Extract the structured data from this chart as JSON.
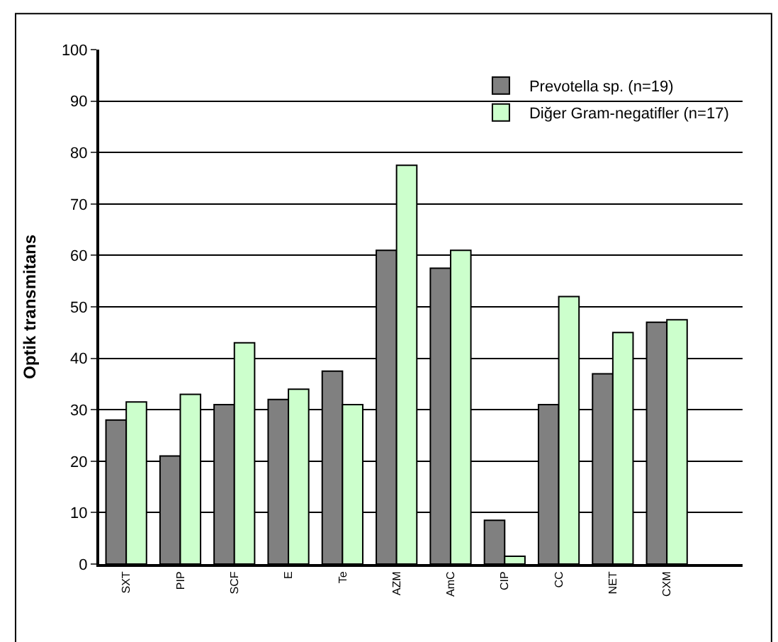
{
  "chart_data": {
    "type": "bar",
    "ylabel": "Optik transmitans",
    "categories": [
      "SXT",
      "PIP",
      "SCF",
      "E",
      "Te",
      "AZM",
      "AmC",
      "CIP",
      "CC",
      "NET",
      "CXM"
    ],
    "series": [
      {
        "name": "Prevotella sp. (n=19)",
        "color": "#808080",
        "values": [
          28,
          21,
          31,
          32,
          37.5,
          61,
          57.5,
          8.5,
          31,
          37,
          47
        ]
      },
      {
        "name": "Diğer Gram-negatifler (n=17)",
        "color": "#ccffcc",
        "values": [
          31.5,
          33,
          43,
          34,
          31,
          77.5,
          61,
          1.5,
          52,
          45,
          47.5
        ]
      }
    ],
    "ylim": [
      0,
      100
    ],
    "yticks": [
      0,
      10,
      20,
      30,
      40,
      50,
      60,
      70,
      80,
      90,
      100
    ],
    "grid": "y",
    "legend": "top right"
  }
}
